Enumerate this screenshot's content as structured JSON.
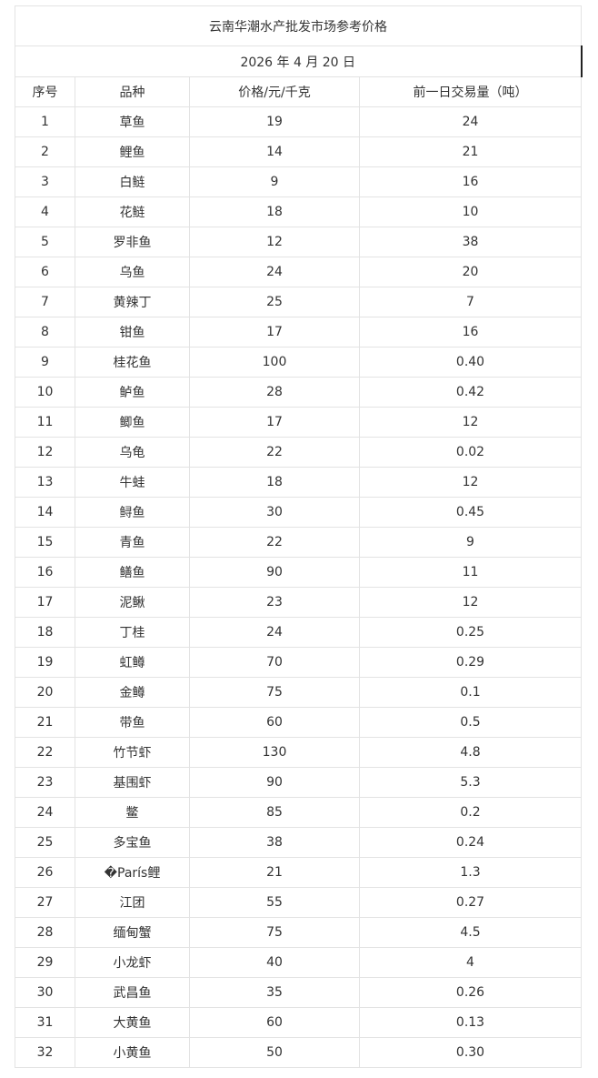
{
  "title": "云南华潮水产批发市场参考价格",
  "date": "2026 年 4 月 20 日",
  "headers": [
    "序号",
    "品种",
    "价格/元/千克",
    "前一日交易量（吨）"
  ],
  "rows": [
    [
      "1",
      "草鱼",
      "19",
      "24"
    ],
    [
      "2",
      "鲤鱼",
      "14",
      "21"
    ],
    [
      "3",
      "白鲢",
      "9",
      "16"
    ],
    [
      "4",
      "花鲢",
      "18",
      "10"
    ],
    [
      "5",
      "罗非鱼",
      "12",
      "38"
    ],
    [
      "6",
      "乌鱼",
      "24",
      "20"
    ],
    [
      "7",
      "黄辣丁",
      "25",
      "7"
    ],
    [
      "8",
      "钳鱼",
      "17",
      "16"
    ],
    [
      "9",
      "桂花鱼",
      "100",
      "0.40"
    ],
    [
      "10",
      "鲈鱼",
      "28",
      "0.42"
    ],
    [
      "11",
      "鲫鱼",
      "17",
      "12"
    ],
    [
      "12",
      "乌龟",
      "22",
      "0.02"
    ],
    [
      "13",
      "牛蛙",
      "18",
      "12"
    ],
    [
      "14",
      "鲟鱼",
      "30",
      "0.45"
    ],
    [
      "15",
      "青鱼",
      "22",
      "9"
    ],
    [
      "16",
      "鳝鱼",
      "90",
      "11"
    ],
    [
      "17",
      "泥鳅",
      "23",
      "12"
    ],
    [
      "18",
      "丁桂",
      "24",
      "0.25"
    ],
    [
      "19",
      "虹鳟",
      "70",
      "0.29"
    ],
    [
      "20",
      "金鳟",
      "75",
      "0.1"
    ],
    [
      "21",
      "带鱼",
      "60",
      "0.5"
    ],
    [
      "22",
      "竹节虾",
      "130",
      "4.8"
    ],
    [
      "23",
      "基围虾",
      "90",
      "5.3"
    ],
    [
      "24",
      "鳖",
      "85",
      "0.2"
    ],
    [
      "25",
      "多宝鱼",
      "38",
      "0.24"
    ],
    [
      "26",
      "�París鲤",
      "21",
      "1.3"
    ],
    [
      "27",
      "江团",
      "55",
      "0.27"
    ],
    [
      "28",
      "缅甸蟹",
      "75",
      "4.5"
    ],
    [
      "29",
      "小龙虾",
      "40",
      "4"
    ],
    [
      "30",
      "武昌鱼",
      "35",
      "0.26"
    ],
    [
      "31",
      "大黄鱼",
      "60",
      "0.13"
    ],
    [
      "32",
      "小黄鱼",
      "50",
      "0.30"
    ]
  ]
}
